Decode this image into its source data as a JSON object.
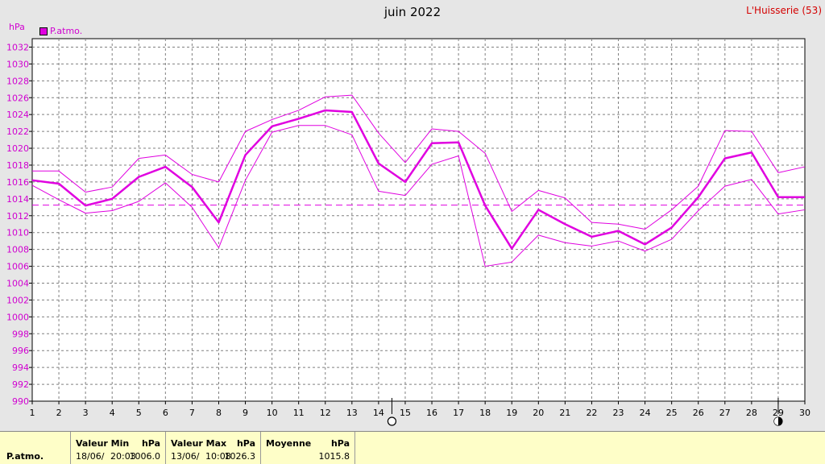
{
  "title": "juin 2022",
  "station": "L'Huisserie (53)",
  "unit": "hPa",
  "legend": {
    "label": "P.atmo.",
    "color": "#e000e0"
  },
  "footer": {
    "series_name": "P.atmo.",
    "min": {
      "header": "Valeur Min",
      "unit": "hPa",
      "date": "18/06/",
      "time": "20:03",
      "value": "1006.0"
    },
    "max": {
      "header": "Valeur Max",
      "unit": "hPa",
      "date": "13/06/",
      "time": "10:08",
      "value": "1026.3"
    },
    "avg": {
      "header": "Moyenne",
      "unit": "hPa",
      "value": "1015.8"
    }
  },
  "chart_data": {
    "type": "line",
    "title": "juin 2022",
    "ylabel": "hPa",
    "x": [
      1,
      2,
      3,
      4,
      5,
      6,
      7,
      8,
      9,
      10,
      11,
      12,
      13,
      14,
      15,
      16,
      17,
      18,
      19,
      20,
      21,
      22,
      23,
      24,
      25,
      26,
      27,
      28,
      29,
      30
    ],
    "xlim": [
      1,
      30
    ],
    "ylim": [
      990,
      1033
    ],
    "yticks": [
      990,
      992,
      994,
      996,
      998,
      1000,
      1002,
      1004,
      1006,
      1008,
      1010,
      1012,
      1014,
      1016,
      1018,
      1020,
      1022,
      1024,
      1026,
      1028,
      1030,
      1032
    ],
    "grid": true,
    "legend_position": "top-left",
    "colors": {
      "series": "#e000e0",
      "grid": "#808080",
      "axis_text": "#d000d0"
    },
    "series": [
      {
        "name": "P.atmo.",
        "role": "mean",
        "values": [
          1016.2,
          1015.8,
          1013.2,
          1014.0,
          1016.6,
          1017.8,
          1015.4,
          1011.2,
          1019.2,
          1022.6,
          1023.5,
          1024.5,
          1024.3,
          1018.2,
          1016.0,
          1020.6,
          1020.7,
          1013.2,
          1008.1,
          1012.7,
          1011.0,
          1009.5,
          1010.2,
          1008.6,
          1010.6,
          1014.2,
          1018.8,
          1019.5,
          1014.2,
          1014.2
        ]
      },
      {
        "role": "max",
        "values": [
          1017.3,
          1017.3,
          1014.8,
          1015.4,
          1018.8,
          1019.2,
          1016.9,
          1016.0,
          1022.0,
          1023.4,
          1024.5,
          1026.1,
          1026.3,
          1021.8,
          1018.3,
          1022.3,
          1022.0,
          1019.4,
          1012.5,
          1015.0,
          1014.1,
          1011.2,
          1011.0,
          1010.4,
          1012.7,
          1015.5,
          1022.1,
          1022.0,
          1017.1,
          1017.8
        ]
      },
      {
        "role": "min",
        "values": [
          1015.6,
          1013.9,
          1012.3,
          1012.6,
          1013.7,
          1015.9,
          1013.0,
          1008.2,
          1016.2,
          1021.9,
          1022.7,
          1022.7,
          1021.6,
          1014.9,
          1014.4,
          1018.1,
          1019.1,
          1006.0,
          1006.5,
          1009.7,
          1008.8,
          1008.4,
          1009.0,
          1007.8,
          1009.2,
          1012.6,
          1015.5,
          1016.3,
          1012.2,
          1012.7
        ]
      }
    ],
    "reference_line": {
      "style": "dashed",
      "value": 1013.25
    },
    "moon_phases": [
      {
        "day": 14.5,
        "phase": "full-moon"
      },
      {
        "day": 29,
        "phase": "new-moon"
      }
    ]
  }
}
